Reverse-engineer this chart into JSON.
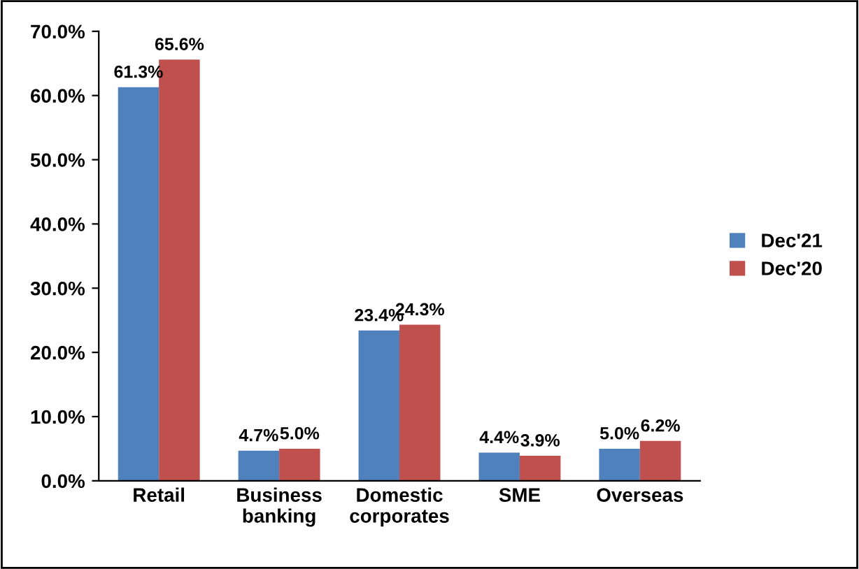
{
  "chart_data": {
    "type": "bar",
    "categories": [
      "Retail",
      "Business\nbanking",
      "Domestic\ncorporates",
      "SME",
      "Overseas"
    ],
    "series": [
      {
        "name": "Dec'21",
        "color": "#4f81bd",
        "values": [
          61.3,
          4.7,
          23.4,
          4.4,
          5.0
        ],
        "value_labels": [
          "61.3%",
          "4.7%",
          "23.4%",
          "4.4%",
          "5.0%"
        ]
      },
      {
        "name": "Dec'20",
        "color": "#c0504d",
        "values": [
          65.6,
          5.0,
          24.3,
          3.9,
          6.2
        ],
        "value_labels": [
          "65.6%",
          "5.0%",
          "24.3%",
          "3.9%",
          "6.2%"
        ]
      }
    ],
    "ylim": [
      0,
      70
    ],
    "yticks": [
      {
        "value": 0,
        "label": "0.0%"
      },
      {
        "value": 10,
        "label": "10.0%"
      },
      {
        "value": 20,
        "label": "20.0%"
      },
      {
        "value": 30,
        "label": "30.0%"
      },
      {
        "value": 40,
        "label": "40.0%"
      },
      {
        "value": 50,
        "label": "50.0%"
      },
      {
        "value": 60,
        "label": "60.0%"
      },
      {
        "value": 70,
        "label": "70.0%"
      }
    ],
    "grid": false,
    "legend": "right"
  }
}
